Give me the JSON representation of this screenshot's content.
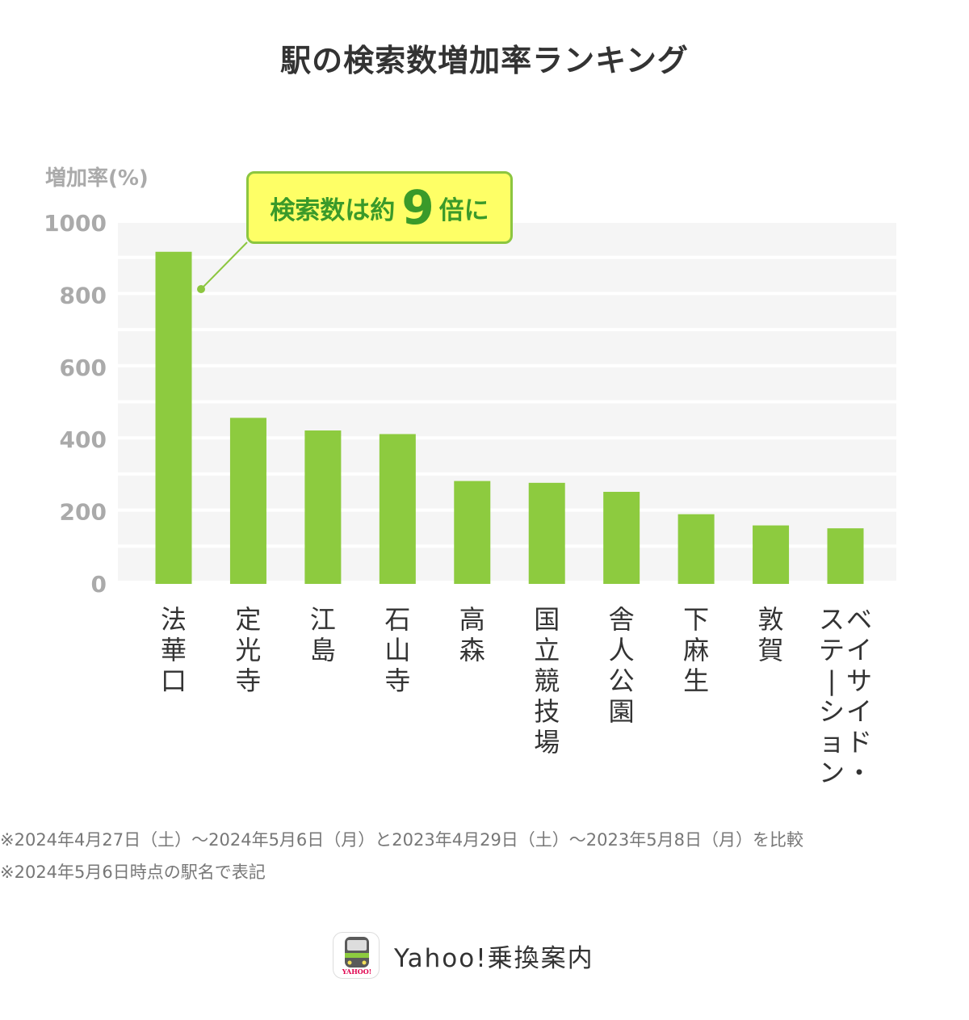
{
  "title": "駅の検索数増加率ランキング",
  "callout": {
    "prefix": "検索数は約",
    "number": "9",
    "suffix": "倍に"
  },
  "notes": [
    "※2024年4月27日（土）～2024年5月6日（月）と2023年4月29日（土）～2023年5月8日（月）を比較",
    "※2024年5月6日時点の駅名で表記"
  ],
  "brand": {
    "name": "Yahoo!乗換案内",
    "icon": "yahoo-transit-train-icon",
    "icon_text": "YAHOO!"
  },
  "colors": {
    "bar": "#8dcb3f",
    "band": "#f5f5f5",
    "axis_text": "#aaaaaa",
    "callout_bg": "#feff66",
    "callout_border": "#8cc63f",
    "callout_text": "#3a9a2a"
  },
  "chart_data": {
    "type": "bar",
    "title": "駅の検索数増加率ランキング",
    "ylabel": "増加率(%)",
    "xlabel": "",
    "ylim": [
      0,
      1000
    ],
    "yticks": [
      0,
      200,
      400,
      600,
      800,
      1000
    ],
    "yticks_labels": [
      "0",
      "200",
      "400",
      "600",
      "800",
      "1000"
    ],
    "categories": [
      "法華口",
      "定光寺",
      "江島",
      "石山寺",
      "高森",
      "国立競技場",
      "舎人公園",
      "下麻生",
      "敦賀",
      "ベイサイド・ステーション"
    ],
    "category_columns": [
      [
        "法華口"
      ],
      [
        "定光寺"
      ],
      [
        "江島"
      ],
      [
        "石山寺"
      ],
      [
        "高森"
      ],
      [
        "国立競技場"
      ],
      [
        "舎人公園"
      ],
      [
        "下麻生"
      ],
      [
        "敦賀"
      ],
      [
        "ベイサイド・",
        "ステーション"
      ]
    ],
    "values": [
      920,
      460,
      425,
      415,
      285,
      280,
      255,
      193,
      162,
      154
    ]
  }
}
